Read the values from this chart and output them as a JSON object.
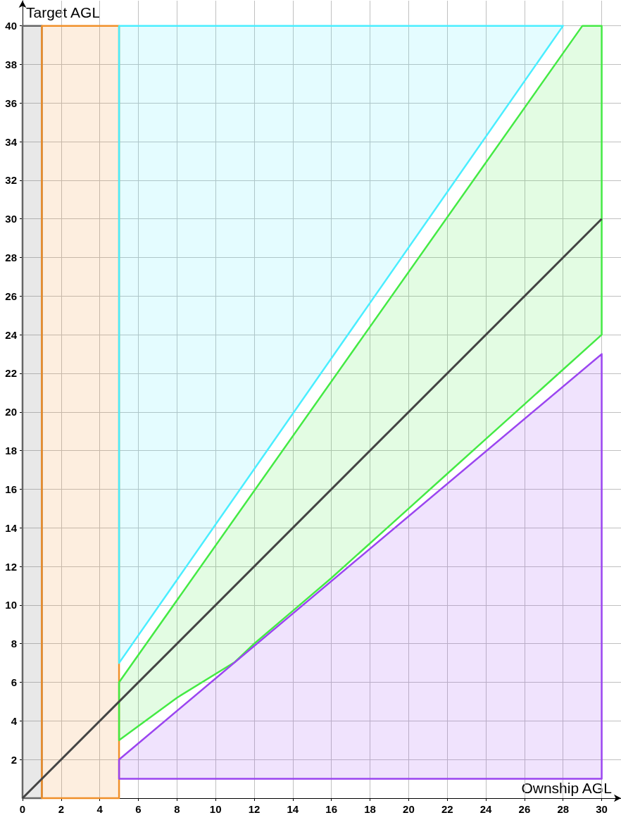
{
  "chart_data": {
    "type": "area",
    "xlabel": "Ownship AGL",
    "ylabel": "Target AGL",
    "xlim": [
      0,
      31
    ],
    "ylim": [
      0,
      41.3
    ],
    "xticks": [
      0,
      2,
      4,
      6,
      8,
      10,
      12,
      14,
      16,
      18,
      20,
      22,
      24,
      26,
      28,
      30
    ],
    "yticks": [
      2,
      4,
      6,
      8,
      10,
      12,
      14,
      16,
      18,
      20,
      22,
      24,
      26,
      28,
      30,
      32,
      34,
      36,
      38,
      40
    ],
    "grid": true,
    "marker": "none",
    "line_style": "solid",
    "series": [
      {
        "color": "#666666",
        "x": [
          0,
          1,
          1,
          0,
          0
        ],
        "values": [
          0,
          0,
          40,
          40,
          0
        ]
      },
      {
        "color": "#f0902a",
        "x": [
          1,
          5,
          5,
          1,
          1
        ],
        "values": [
          0,
          0,
          40,
          40,
          0
        ]
      },
      {
        "color": "#4aeeff",
        "x": [
          5,
          28,
          5,
          5
        ],
        "values": [
          7,
          40,
          40,
          7
        ]
      },
      {
        "color": "#44ea44",
        "x": [
          5,
          8,
          11,
          12,
          14,
          16,
          18,
          20,
          22,
          24,
          26,
          28,
          30,
          30,
          29,
          5,
          5
        ],
        "values": [
          3,
          5.2,
          7.05,
          8,
          9.7,
          11.4,
          13.2,
          15,
          16.8,
          18.6,
          20.4,
          22.2,
          24,
          40,
          40,
          6,
          3
        ]
      },
      {
        "color": "#9b45f0",
        "x": [
          5,
          30,
          30,
          5,
          5
        ],
        "values": [
          1,
          1,
          23,
          2,
          1
        ]
      },
      {
        "type": "line",
        "color": "#444444",
        "x": [
          0,
          30
        ],
        "values": [
          0,
          30
        ]
      }
    ]
  }
}
